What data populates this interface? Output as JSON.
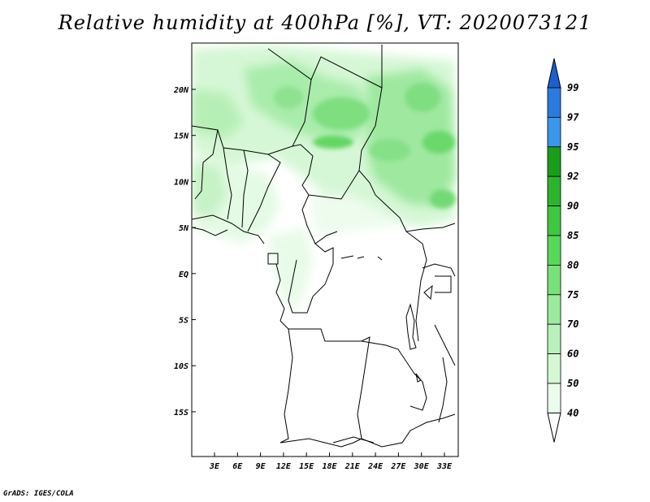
{
  "title": "Relative humidity at 400hPa [%], VT: 2020073121",
  "footer": "GrADS: IGES/COLA",
  "map": {
    "lat_labels": [
      "20N",
      "15N",
      "10N",
      "5N",
      "EQ",
      "5S",
      "10S",
      "15S"
    ],
    "lon_labels": [
      "3E",
      "6E",
      "9E",
      "12E",
      "15E",
      "18E",
      "21E",
      "24E",
      "27E",
      "30E",
      "33E"
    ]
  },
  "colorbar": {
    "labels": [
      "99",
      "97",
      "95",
      "92",
      "90",
      "85",
      "80",
      "75",
      "70",
      "60",
      "50",
      "40"
    ],
    "colors": [
      "#1c5fcf",
      "#2b7ae0",
      "#3c96eb",
      "#1a9e1a",
      "#2db42d",
      "#3fc83f",
      "#58d858",
      "#78e278",
      "#9aeb9a",
      "#b8f2b8",
      "#d3f8d3",
      "#ecfcec",
      "#ffffff"
    ]
  }
}
